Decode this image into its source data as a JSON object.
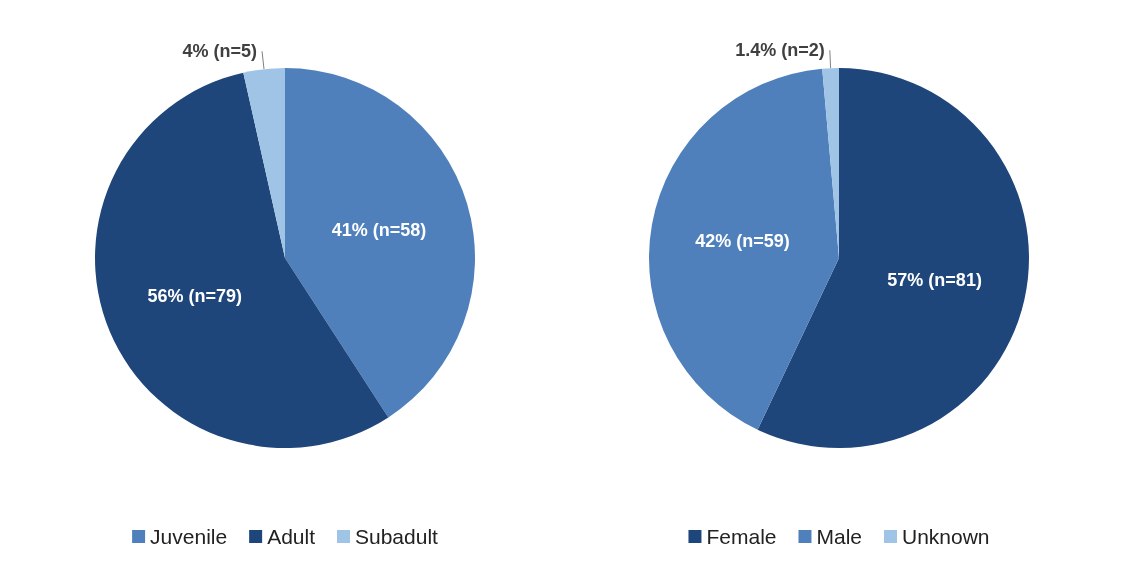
{
  "chart_data": [
    {
      "type": "pie",
      "categories": [
        "Juvenile",
        "Adult",
        "Subadult"
      ],
      "values": [
        58,
        79,
        5
      ],
      "colors": [
        "#4f80bb",
        "#1f467a",
        "#a0c4e6"
      ],
      "value_labels": [
        "41% (n=58)",
        "56% (n=79)",
        "4% (n=5)"
      ],
      "legend": "bottom"
    },
    {
      "type": "pie",
      "categories": [
        "Female",
        "Male",
        "Unknown"
      ],
      "values": [
        81,
        59,
        2
      ],
      "colors": [
        "#1f467a",
        "#4f80bb",
        "#a0c4e6"
      ],
      "value_labels": [
        "57% (n=81)",
        "42% (n=59)",
        "1.4% (n=2)"
      ],
      "legend": "bottom"
    }
  ]
}
